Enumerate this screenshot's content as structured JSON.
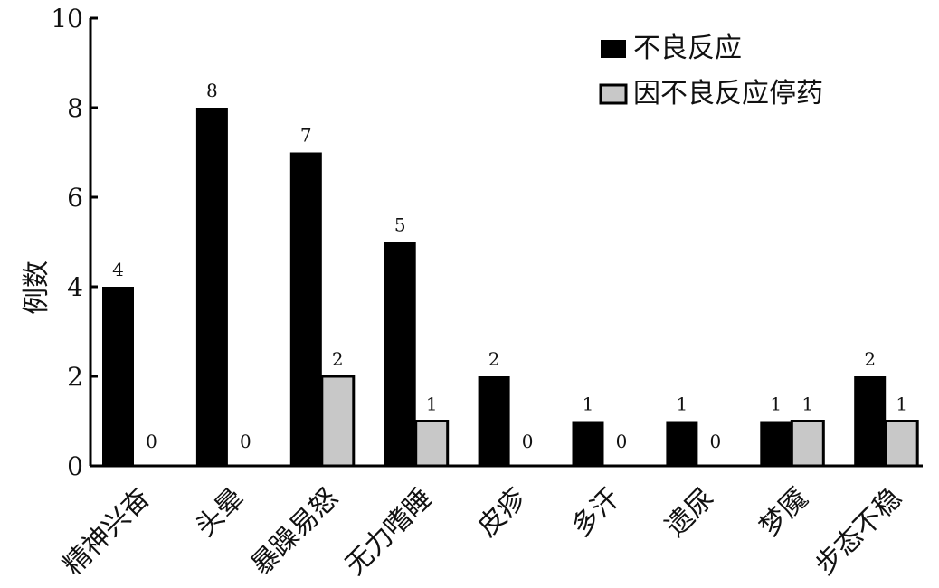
{
  "chart_data": {
    "type": "bar",
    "title": "",
    "xlabel": "",
    "ylabel": "例数",
    "ylim": [
      0,
      10
    ],
    "yticks": [
      0,
      2,
      4,
      6,
      8,
      10
    ],
    "categories": [
      "精神兴奋",
      "头晕",
      "暴躁易怒",
      "无力嗜睡",
      "皮疹",
      "多汗",
      "遗尿",
      "梦魇",
      "步态不稳"
    ],
    "series": [
      {
        "name": "不良反应",
        "color": "#000000",
        "values": [
          4,
          8,
          7,
          5,
          2,
          1,
          1,
          1,
          2
        ]
      },
      {
        "name": "因不良反应停药",
        "color": "#c8c8c8",
        "values": [
          0,
          0,
          2,
          1,
          0,
          0,
          0,
          1,
          1
        ]
      }
    ],
    "legend_position": "top-right",
    "grid": false
  }
}
